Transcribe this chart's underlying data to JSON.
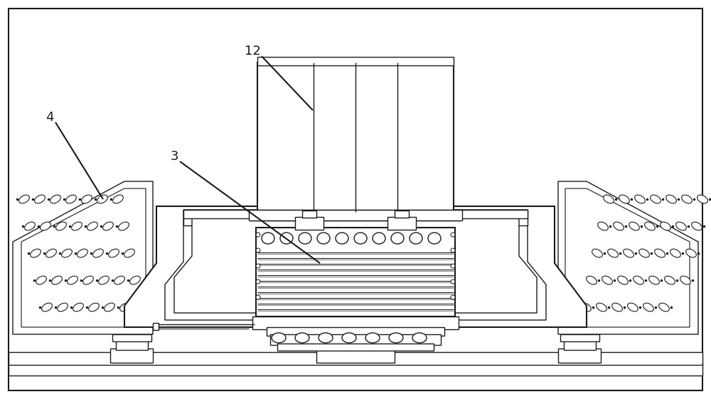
{
  "bg_color": "#ffffff",
  "line_color": "#1a1a1a",
  "lw": 1.0,
  "lw2": 1.5,
  "lw3": 2.0
}
